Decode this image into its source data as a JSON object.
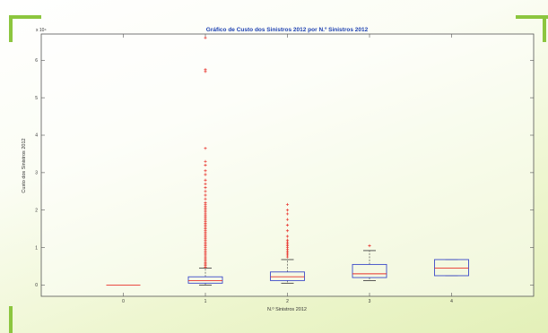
{
  "chart_data": {
    "type": "box",
    "title": "Gráfico de Custo dos Sinistros 2012 por N.º Sinistros 2012",
    "xlabel": "N.º Sinistros 2012",
    "ylabel": "Custo dos Sinistros 2012",
    "y_exponent_label": "x 10⁴",
    "ylim": [
      -0.3,
      6.7
    ],
    "y_ticks": [
      0,
      1,
      2,
      3,
      4,
      5,
      6
    ],
    "categories": [
      "0",
      "1",
      "2",
      "3",
      "4"
    ],
    "boxes": [
      {
        "category": "0",
        "q1": 0,
        "median": 0,
        "q3": 0,
        "whisker_low": 0,
        "whisker_high": 0,
        "outliers": []
      },
      {
        "category": "1",
        "q1": 0.05,
        "median": 0.12,
        "q3": 0.22,
        "whisker_low": 0,
        "whisker_high": 0.45,
        "outliers": [
          0.48,
          0.52,
          0.56,
          0.6,
          0.65,
          0.7,
          0.75,
          0.8,
          0.85,
          0.9,
          0.95,
          1.0,
          1.05,
          1.1,
          1.15,
          1.2,
          1.25,
          1.3,
          1.35,
          1.4,
          1.45,
          1.5,
          1.55,
          1.6,
          1.65,
          1.7,
          1.75,
          1.8,
          1.85,
          1.9,
          1.95,
          2.0,
          2.05,
          2.1,
          2.15,
          2.2,
          2.3,
          2.4,
          2.5,
          2.6,
          2.7,
          2.8,
          2.95,
          3.05,
          3.2,
          3.3,
          3.65,
          5.7,
          5.75,
          6.6
        ]
      },
      {
        "category": "2",
        "q1": 0.12,
        "median": 0.22,
        "q3": 0.35,
        "whisker_low": 0.05,
        "whisker_high": 0.68,
        "outliers": [
          0.75,
          0.8,
          0.85,
          0.9,
          0.95,
          1.0,
          1.05,
          1.1,
          1.15,
          1.2,
          1.3,
          1.45,
          1.6,
          1.75,
          1.9,
          2.0,
          2.15
        ]
      },
      {
        "category": "3",
        "q1": 0.2,
        "median": 0.3,
        "q3": 0.55,
        "whisker_low": 0.12,
        "whisker_high": 0.92,
        "outliers": [
          1.05
        ]
      },
      {
        "category": "4",
        "q1": 0.25,
        "median": 0.45,
        "q3": 0.68,
        "whisker_low": 0.25,
        "whisker_high": 0.68,
        "outliers": []
      }
    ],
    "colors": {
      "box": "#3b49c9",
      "median": "#e8302a",
      "whisker": "#333333",
      "outlier": "#e8302a"
    },
    "grid": false,
    "legend": "none"
  },
  "decoration": {
    "bracket_color": "#8cc63f"
  }
}
